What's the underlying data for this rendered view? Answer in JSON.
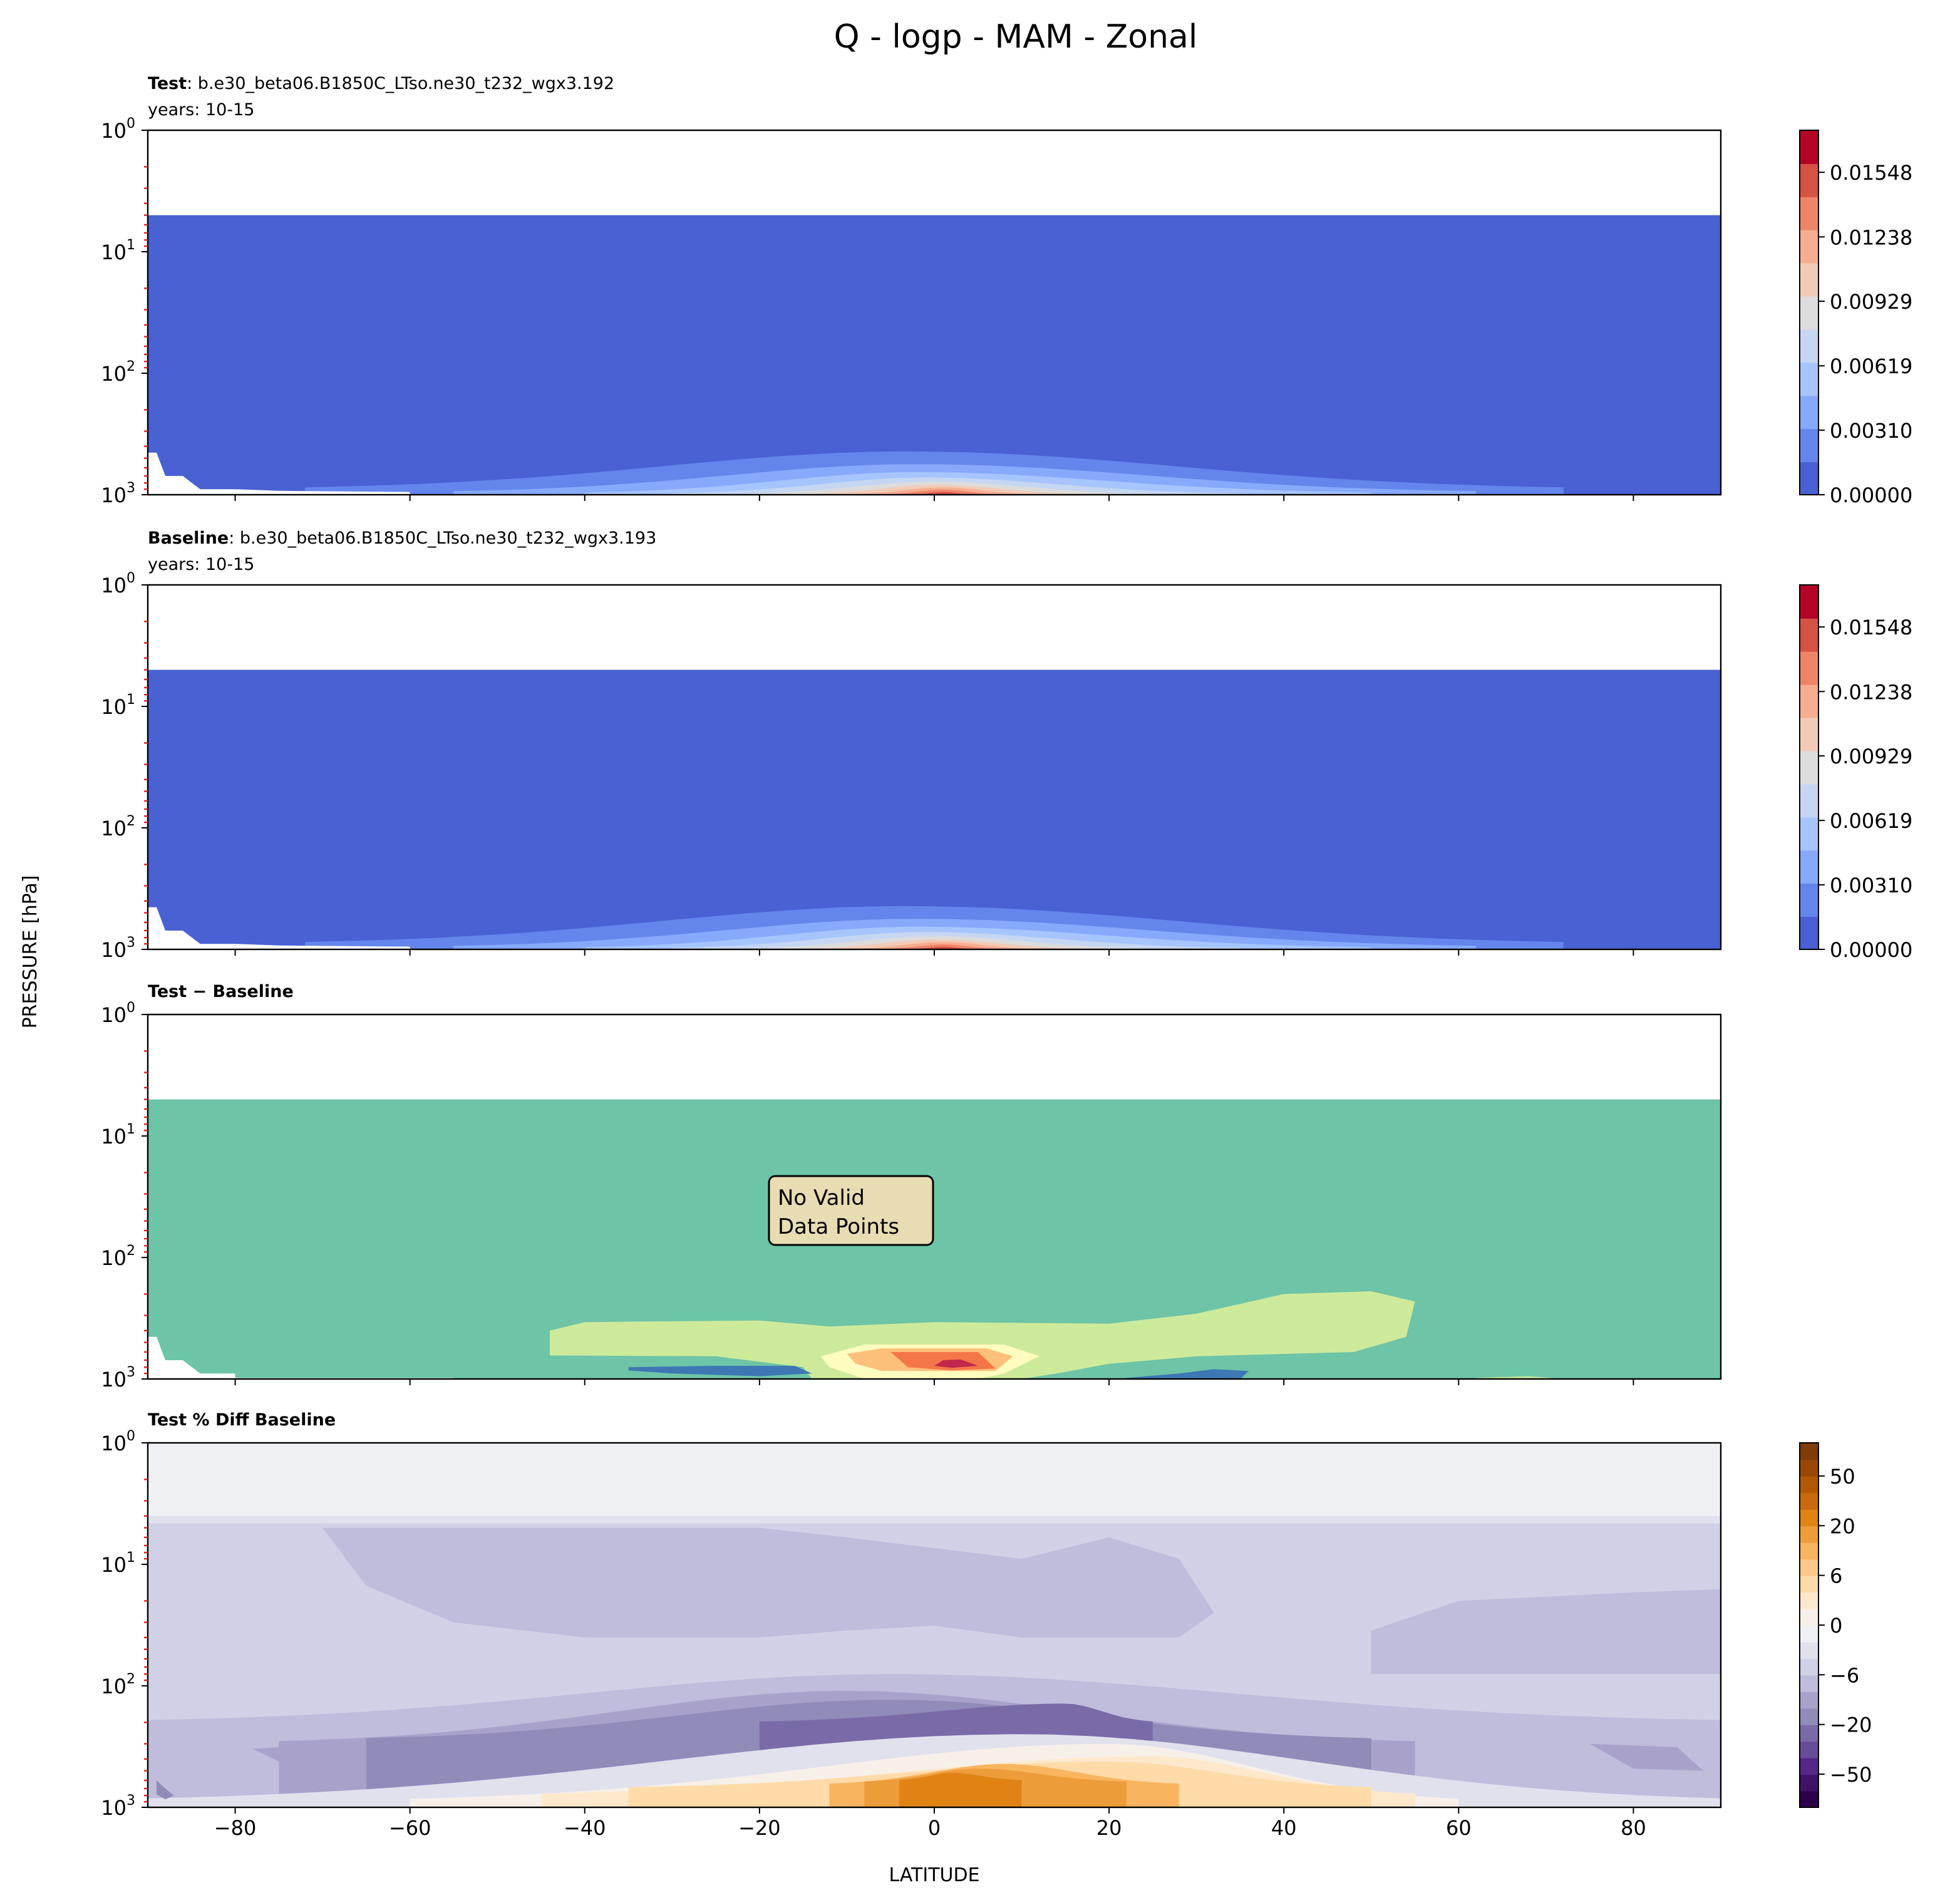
{
  "suptitle": "Q - logp - MAM - Zonal",
  "ylabel": "PRESSURE [hPa]",
  "xlabel": "LATITUDE",
  "xticks": [
    -80,
    -60,
    -40,
    -20,
    0,
    20,
    40,
    60,
    80
  ],
  "xtick_labels": [
    "−80",
    "−60",
    "−40",
    "−20",
    "0",
    "20",
    "40",
    "60",
    "80"
  ],
  "yticks": [
    1,
    10,
    100,
    1000
  ],
  "ytick_bases": [
    "10",
    "10",
    "10",
    "10"
  ],
  "ytick_exps": [
    "0",
    "1",
    "2",
    "3"
  ],
  "chart_data": [
    {
      "type": "heatmap",
      "title_bold": "Test",
      "title_rest": ": b.e30_beta06.B1850C_LTso.ne30_t232_wgx3.192",
      "subtitle": "years: 10-15",
      "xlim": [
        -90,
        90
      ],
      "ylim": [
        1000,
        1
      ],
      "yscale": "log",
      "colormap": "coolwarm",
      "colorbar_ticks": [
        "0.00000",
        "0.00310",
        "0.00619",
        "0.00929",
        "0.01238",
        "0.01548"
      ],
      "colorbar_range": [
        0,
        0.0175
      ]
    },
    {
      "type": "heatmap",
      "title_bold": "Baseline",
      "title_rest": ": b.e30_beta06.B1850C_LTso.ne30_t232_wgx3.193",
      "subtitle": "years: 10-15",
      "xlim": [
        -90,
        90
      ],
      "ylim": [
        1000,
        1
      ],
      "yscale": "log",
      "colormap": "coolwarm",
      "colorbar_ticks": [
        "0.00000",
        "0.00310",
        "0.00619",
        "0.00929",
        "0.01238",
        "0.01548"
      ],
      "colorbar_range": [
        0,
        0.0175
      ]
    },
    {
      "type": "heatmap",
      "title_bold": "Test − Baseline",
      "annotation": [
        "No Valid",
        "Data Points"
      ],
      "xlim": [
        -90,
        90
      ],
      "ylim": [
        1000,
        1
      ],
      "yscale": "log",
      "colormap": "Spectral_r"
    },
    {
      "type": "heatmap",
      "title_bold": "Test % Diff Baseline",
      "xlim": [
        -90,
        90
      ],
      "ylim": [
        1000,
        1
      ],
      "yscale": "log",
      "colormap": "PuOr_r",
      "colorbar_ticks": [
        "50",
        "20",
        "6",
        "0",
        "−6",
        "−20",
        "−50"
      ],
      "colorbar_colors": [
        "#7f3b08",
        "#994806",
        "#b35806",
        "#c96a0e",
        "#e08214",
        "#ed9c3a",
        "#f8b45f",
        "#fdc988",
        "#fedba8",
        "#fde8cc",
        "#f7f0e9",
        "#eef0f4",
        "#e1e1ee",
        "#d0d1e6",
        "#bfbcdc",
        "#a8a2cb",
        "#918bba",
        "#7b6aa8",
        "#684b99",
        "#542788",
        "#3f1468",
        "#2d004b"
      ]
    }
  ],
  "colors": {
    "coolwarm": [
      "#4961d2",
      "#6485ec",
      "#86a9fc",
      "#a6c4fe",
      "#c5d6f2",
      "#dddcdc",
      "#f2cbb7",
      "#f7ad90",
      "#ee8468",
      "#d65244",
      "#b40426"
    ],
    "spectral": {
      "base": "#6dc4a6",
      "light": "#cdea9b",
      "pale": "#fefcbe",
      "orange": "#fdc07a",
      "red": "#f47648",
      "crimson": "#c1284b",
      "blue": "#3f77b4"
    }
  }
}
